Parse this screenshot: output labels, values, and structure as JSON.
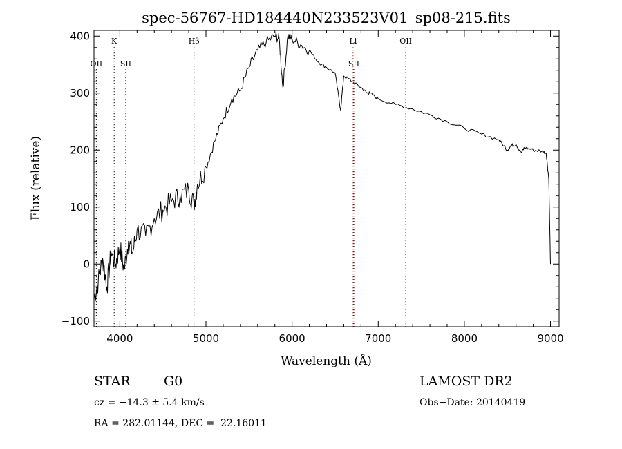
{
  "chart_data": {
    "type": "line",
    "title": "spec-56767-HD184440N233523V01_sp08-215.fits",
    "xlabel": "Wavelength (Å)",
    "ylabel": "Flux (relative)",
    "xlim": [
      3700,
      9100
    ],
    "ylim": [
      -110,
      410
    ],
    "x_ticks": [
      4000,
      5000,
      6000,
      7000,
      8000,
      9000
    ],
    "y_ticks": [
      -100,
      0,
      100,
      200,
      300,
      400
    ],
    "x_tick_labels": [
      "4000",
      "5000",
      "6000",
      "7000",
      "8000",
      "9000"
    ],
    "y_tick_labels": [
      "−100",
      "0",
      "100",
      "200",
      "300",
      "400"
    ],
    "grid": false,
    "series": [
      {
        "color": "#000000",
        "x": [
          3700,
          3750,
          3800,
          3850,
          3900,
          3950,
          4000,
          4050,
          4100,
          4150,
          4200,
          4300,
          4400,
          4500,
          4600,
          4700,
          4800,
          4860,
          4900,
          5000,
          5100,
          5200,
          5300,
          5400,
          5500,
          5600,
          5700,
          5800,
          5850,
          5893,
          5950,
          6000,
          6100,
          6200,
          6300,
          6400,
          6500,
          6563,
          6600,
          6700,
          6800,
          6870,
          6900,
          7000,
          7200,
          7400,
          7600,
          7800,
          8000,
          8200,
          8400,
          8498,
          8542,
          8600,
          8662,
          8700,
          8800,
          8900,
          8950,
          8980,
          9000
        ],
        "y": [
          -60,
          -30,
          10,
          -40,
          20,
          0,
          30,
          -10,
          40,
          20,
          60,
          50,
          80,
          95,
          110,
          120,
          130,
          105,
          140,
          170,
          215,
          255,
          290,
          305,
          345,
          375,
          390,
          400,
          395,
          310,
          400,
          395,
          385,
          375,
          355,
          345,
          335,
          270,
          330,
          320,
          310,
          300,
          300,
          290,
          280,
          272,
          262,
          250,
          238,
          228,
          218,
          200,
          208,
          210,
          195,
          205,
          200,
          198,
          195,
          150,
          0
        ]
      }
    ],
    "line_markers": [
      {
        "label": "OII",
        "x": 3727,
        "color": "#000000",
        "style": "dotted",
        "row": "lower"
      },
      {
        "label": "K",
        "x": 3934,
        "color": "#000000",
        "style": "dotted",
        "row": "upper"
      },
      {
        "label": "SII",
        "x": 4069,
        "color": "#000000",
        "style": "dotted",
        "row": "lower"
      },
      {
        "label": "Hβ",
        "x": 4861,
        "color": "#000000",
        "style": "dotted",
        "row": "upper"
      },
      {
        "label": "Li",
        "x": 6708,
        "color": "#d62020",
        "style": "dotted",
        "row": "upper"
      },
      {
        "label": "SII",
        "x": 6717,
        "color": "#000000",
        "style": "dotted",
        "row": "lower"
      },
      {
        "label": "OII",
        "x": 7320,
        "color": "#000000",
        "style": "dotted",
        "row": "upper"
      }
    ]
  },
  "info": {
    "class_label": "STAR",
    "subclass": "G0",
    "survey": "LAMOST DR2",
    "cz": "cz = −14.3 ± 5.4 km/s",
    "obs_date": "Obs−Date: 20140419",
    "coords": "RA = 282.01144, DEC =  22.16011"
  }
}
